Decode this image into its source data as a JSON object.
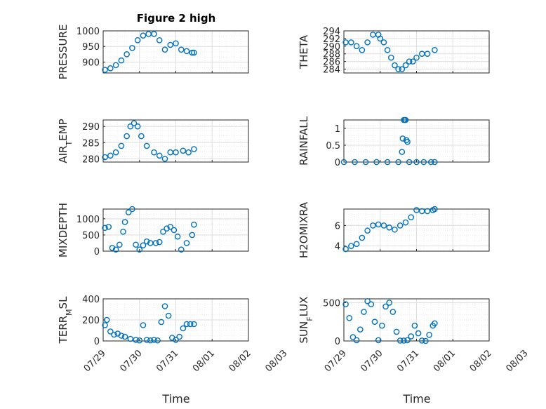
{
  "figure": {
    "title": "Figure 2 high",
    "x_tick_labels": [
      "07/29",
      "07/30",
      "07/31",
      "08/01",
      "08/02",
      "08/03"
    ],
    "x_label": "Time",
    "marker_color": "#0072BD"
  },
  "chart_data": [
    {
      "type": "scatter",
      "ylabel": "PRESSURE",
      "ylim": [
        865,
        1000
      ],
      "yticks": [
        900,
        950,
        1000
      ],
      "xlim_days": [
        0,
        4
      ],
      "grid": true,
      "x": [
        0.05,
        0.2,
        0.35,
        0.5,
        0.65,
        0.8,
        0.95,
        1.1,
        1.25,
        1.4,
        1.55,
        1.7,
        1.85,
        2.0,
        2.15,
        2.3,
        2.45,
        2.5
      ],
      "y": [
        875,
        880,
        890,
        905,
        925,
        945,
        970,
        985,
        990,
        990,
        970,
        940,
        955,
        960,
        940,
        935,
        930,
        930
      ]
    },
    {
      "type": "scatter",
      "ylabel": "THETA",
      "ylim": [
        283,
        294
      ],
      "yticks": [
        284,
        286,
        288,
        290,
        292,
        294
      ],
      "xlim_days": [
        0,
        4
      ],
      "grid": true,
      "x": [
        0.05,
        0.2,
        0.35,
        0.5,
        0.65,
        0.8,
        0.95,
        1.0,
        1.1,
        1.2,
        1.3,
        1.4,
        1.5,
        1.6,
        1.7,
        1.8,
        1.9,
        2.0,
        2.15,
        2.3,
        2.5
      ],
      "y": [
        291,
        291,
        290,
        289,
        291,
        293,
        293,
        292,
        291,
        289,
        287,
        285,
        284,
        284,
        285,
        286,
        286,
        287,
        288,
        288,
        289
      ]
    },
    {
      "type": "scatter",
      "ylabel": "AIR_TEMP",
      "ylim": [
        279,
        292
      ],
      "yticks": [
        280,
        285,
        290
      ],
      "xlim_days": [
        0,
        4
      ],
      "grid": true,
      "x": [
        0.05,
        0.2,
        0.35,
        0.5,
        0.65,
        0.75,
        0.85,
        0.95,
        1.05,
        1.2,
        1.4,
        1.55,
        1.7,
        1.85,
        2.0,
        2.2,
        2.35,
        2.5
      ],
      "y": [
        280.5,
        281,
        282,
        284,
        287,
        290,
        291,
        290,
        287,
        284,
        282,
        281,
        280,
        282,
        282,
        282.5,
        282,
        283
      ]
    },
    {
      "type": "scatter",
      "ylabel": "RAINFALL",
      "ylim": [
        0,
        1.25
      ],
      "yticks": [
        0,
        0.5,
        1
      ],
      "xlim_days": [
        0,
        4
      ],
      "grid": true,
      "x": [
        0.0,
        0.3,
        0.6,
        0.9,
        1.2,
        1.5,
        1.6,
        1.62,
        1.65,
        1.68,
        1.7,
        1.72,
        1.75,
        1.8,
        2.0,
        2.2,
        2.4,
        2.5
      ],
      "y": [
        0,
        0,
        0,
        0,
        0,
        0,
        0.3,
        0.7,
        1.25,
        1.25,
        1.25,
        0.65,
        0.6,
        0,
        0,
        0,
        0,
        0
      ]
    },
    {
      "type": "scatter",
      "ylabel": "MIXDEPTH",
      "ylim": [
        0,
        1300
      ],
      "yticks": [
        0,
        500,
        1000
      ],
      "xlim_days": [
        0,
        4
      ],
      "grid": true,
      "x": [
        0.05,
        0.15,
        0.25,
        0.35,
        0.45,
        0.55,
        0.6,
        0.7,
        0.8,
        0.9,
        1.0,
        1.1,
        1.2,
        1.3,
        1.45,
        1.55,
        1.65,
        1.75,
        1.85,
        1.95,
        2.05,
        2.15,
        2.3,
        2.45,
        2.5
      ],
      "y": [
        720,
        750,
        100,
        50,
        200,
        600,
        900,
        1200,
        1300,
        200,
        50,
        180,
        300,
        250,
        250,
        280,
        600,
        700,
        750,
        650,
        450,
        50,
        250,
        500,
        820
      ]
    },
    {
      "type": "scatter",
      "ylabel": "H2OMIXRA",
      "ylim": [
        3.5,
        7.6
      ],
      "yticks": [
        4,
        6
      ],
      "xlim_days": [
        0,
        4
      ],
      "grid": true,
      "x": [
        0.05,
        0.2,
        0.35,
        0.5,
        0.65,
        0.8,
        0.95,
        1.1,
        1.25,
        1.4,
        1.55,
        1.7,
        1.85,
        2.0,
        2.15,
        2.3,
        2.45,
        2.5
      ],
      "y": [
        3.7,
        4.0,
        4.2,
        4.8,
        5.5,
        6.0,
        6.1,
        6.0,
        5.8,
        5.6,
        6.0,
        6.3,
        6.8,
        7.5,
        7.4,
        7.4,
        7.5,
        7.6
      ]
    },
    {
      "type": "scatter",
      "ylabel": "TERR_MSL",
      "ylim": [
        0,
        400
      ],
      "yticks": [
        0,
        200,
        400
      ],
      "xlim_days": [
        0,
        4
      ],
      "grid": true,
      "x": [
        0.05,
        0.1,
        0.2,
        0.3,
        0.4,
        0.5,
        0.6,
        0.75,
        0.9,
        1.0,
        1.1,
        1.2,
        1.3,
        1.4,
        1.5,
        1.6,
        1.7,
        1.8,
        1.9,
        2.0,
        2.1,
        2.2,
        2.3,
        2.4,
        2.5
      ],
      "y": [
        150,
        200,
        90,
        60,
        70,
        50,
        40,
        20,
        10,
        5,
        150,
        10,
        5,
        10,
        5,
        180,
        330,
        240,
        30,
        10,
        40,
        120,
        160,
        160,
        160
      ]
    },
    {
      "type": "scatter",
      "ylabel": "SUN_FLUX",
      "ylim": [
        0,
        550
      ],
      "yticks": [
        0,
        500
      ],
      "xlim_days": [
        0,
        4
      ],
      "grid": true,
      "x": [
        0.05,
        0.15,
        0.25,
        0.35,
        0.45,
        0.55,
        0.65,
        0.75,
        0.85,
        0.95,
        1.05,
        1.15,
        1.25,
        1.35,
        1.45,
        1.55,
        1.65,
        1.75,
        1.85,
        1.95,
        2.05,
        2.15,
        2.25,
        2.35,
        2.45,
        2.5
      ],
      "y": [
        480,
        300,
        50,
        10,
        150,
        380,
        520,
        480,
        250,
        10,
        200,
        450,
        500,
        380,
        120,
        5,
        5,
        10,
        60,
        200,
        100,
        5,
        0,
        80,
        200,
        230
      ]
    }
  ]
}
